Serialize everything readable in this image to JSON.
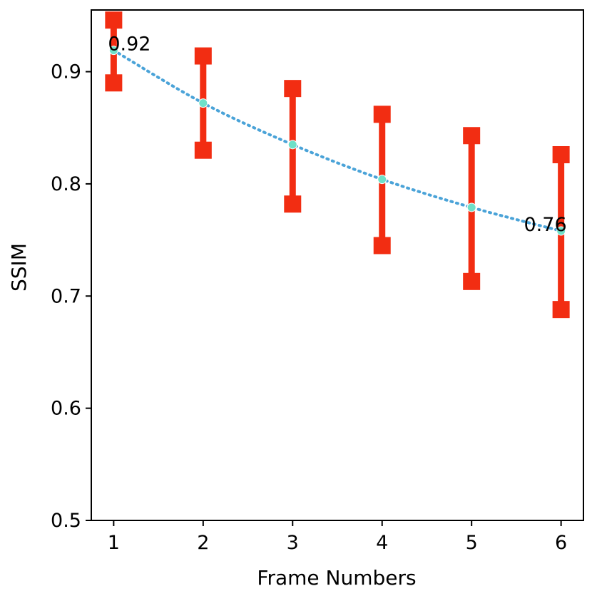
{
  "chart_data": {
    "type": "line",
    "title": "",
    "xlabel": "Frame Numbers",
    "ylabel": "SSIM",
    "x": [
      1,
      2,
      3,
      4,
      5,
      6
    ],
    "series": [
      {
        "values": [
          0.919,
          0.872,
          0.835,
          0.804,
          0.779,
          0.758
        ],
        "error_low": [
          0.89,
          0.83,
          0.782,
          0.745,
          0.713,
          0.688
        ],
        "error_high": [
          0.946,
          0.914,
          0.885,
          0.862,
          0.843,
          0.826
        ],
        "line_style": "dotted",
        "line_color": "#4aa3d8",
        "marker_color": "#6fe0c8",
        "error_color": "#f22d12"
      }
    ],
    "xlim": [
      0.75,
      6.25
    ],
    "ylim": [
      0.5,
      0.955
    ],
    "xticks": [
      "1",
      "2",
      "3",
      "4",
      "5",
      "6"
    ],
    "yticks": [
      "0.5",
      "0.6",
      "0.7",
      "0.8",
      "0.9"
    ],
    "annotations": [
      {
        "x": 1,
        "y": 0.919,
        "text": "0.92"
      },
      {
        "x": 6,
        "y": 0.758,
        "text": "0.76"
      }
    ],
    "grid": false,
    "legend": "none"
  }
}
